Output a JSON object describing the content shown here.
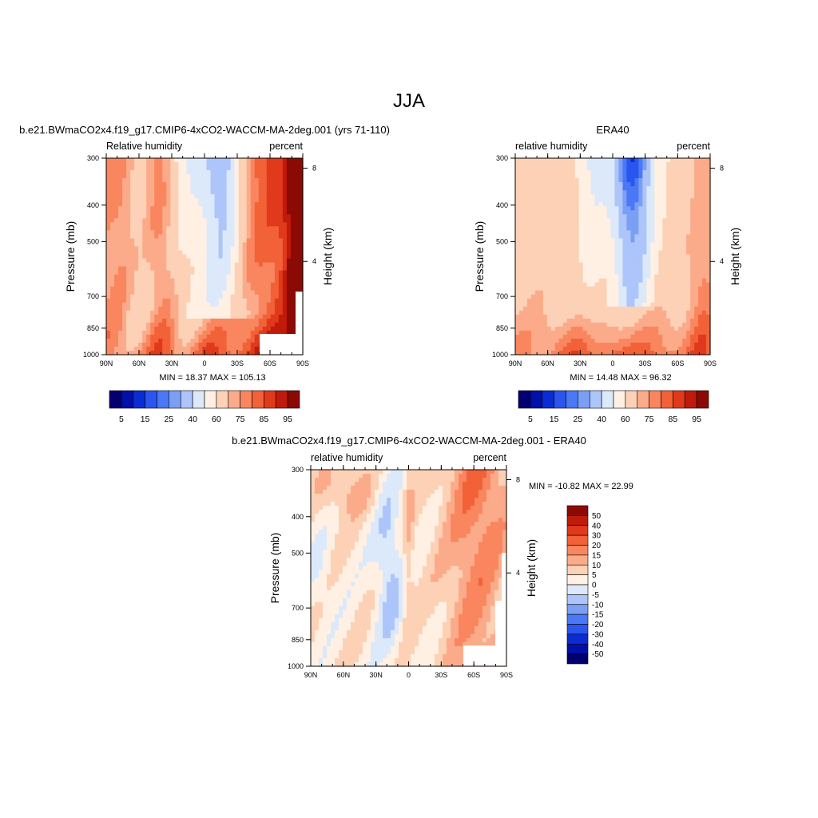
{
  "figure": {
    "title": "JJA"
  },
  "colors": {
    "abs_scale": [
      "#030070",
      "#0010a8",
      "#0a2cd4",
      "#2a55ef",
      "#4a78f6",
      "#7b9ff5",
      "#adc5fa",
      "#dbe9fb",
      "#fff0e3",
      "#fcd1b6",
      "#fcab8a",
      "#f9865f",
      "#f26138",
      "#e0391b",
      "#c01b0a",
      "#8c0a05"
    ],
    "diff_scale": [
      "#030070",
      "#0010a8",
      "#0a2cd4",
      "#2a55ef",
      "#4a78f6",
      "#7b9ff5",
      "#adc5fa",
      "#dbe9fb",
      "#fff0e3",
      "#fcd1b6",
      "#fcab8a",
      "#f9865f",
      "#f26138",
      "#e0391b",
      "#c01b0a",
      "#8c0a05"
    ]
  },
  "chart_data": [
    {
      "type": "heatmap",
      "name": "model",
      "title": "b.e21.BWmaCO2x4.f19_g17.CMIP6-4xCO2-WACCM-MA-2deg.001 (yrs 71-110)",
      "left_label": "Relative humidity",
      "right_label": "percent",
      "ylabel": "Pressure (mb)",
      "ylabel_right": "Height (km)",
      "x_ticks": [
        "90N",
        "60N",
        "30N",
        "0",
        "30S",
        "60S",
        "90S"
      ],
      "y_ticks": [
        "300",
        "400",
        "500",
        "700",
        "850",
        "1000"
      ],
      "y_tick_values": [
        300,
        400,
        500,
        700,
        850,
        1000
      ],
      "height_ticks": [
        "8",
        "4"
      ],
      "height_tick_values": [
        8,
        4
      ],
      "ylim": [
        300,
        1000
      ],
      "xlim": [
        90,
        -90
      ],
      "min_max": "MIN =  18.37  MAX = 105.13",
      "colorbar_labels": [
        "5",
        "15",
        "25",
        "40",
        "60",
        "75",
        "85",
        "95"
      ]
    },
    {
      "type": "heatmap",
      "name": "obs",
      "title": "ERA40",
      "left_label": "relative humidity",
      "right_label": "percent",
      "ylabel": "Pressure (mb)",
      "ylabel_right": "Height (km)",
      "x_ticks": [
        "90N",
        "60N",
        "30N",
        "0",
        "30S",
        "60S",
        "90S"
      ],
      "y_ticks": [
        "300",
        "400",
        "500",
        "700",
        "850",
        "1000"
      ],
      "y_tick_values": [
        300,
        400,
        500,
        700,
        850,
        1000
      ],
      "height_ticks": [
        "8",
        "4"
      ],
      "height_tick_values": [
        8,
        4
      ],
      "ylim": [
        300,
        1000
      ],
      "xlim": [
        90,
        -90
      ],
      "min_max": "MIN =  14.48  MAX =  96.32",
      "colorbar_labels": [
        "5",
        "15",
        "25",
        "40",
        "60",
        "75",
        "85",
        "95"
      ]
    },
    {
      "type": "heatmap",
      "name": "diff",
      "title": "b.e21.BWmaCO2x4.f19_g17.CMIP6-4xCO2-WACCM-MA-2deg.001 - ERA40",
      "left_label": "relative humidity",
      "right_label": "percent",
      "ylabel": "Pressure (mb)",
      "ylabel_right": "Height (km)",
      "x_ticks": [
        "90N",
        "60N",
        "30N",
        "0",
        "30S",
        "60S",
        "90S"
      ],
      "y_ticks": [
        "300",
        "400",
        "500",
        "700",
        "850",
        "1000"
      ],
      "y_tick_values": [
        300,
        400,
        500,
        700,
        850,
        1000
      ],
      "height_ticks": [
        "8",
        "4"
      ],
      "height_tick_values": [
        8,
        4
      ],
      "ylim": [
        300,
        1000
      ],
      "xlim": [
        90,
        -90
      ],
      "min_max": "MIN = -10.82  MAX =  22.99",
      "colorbar_labels": [
        "50",
        "40",
        "30",
        "20",
        "15",
        "10",
        "5",
        "0",
        "-5",
        "-10",
        "-15",
        "-20",
        "-30",
        "-40",
        "-50"
      ]
    }
  ]
}
